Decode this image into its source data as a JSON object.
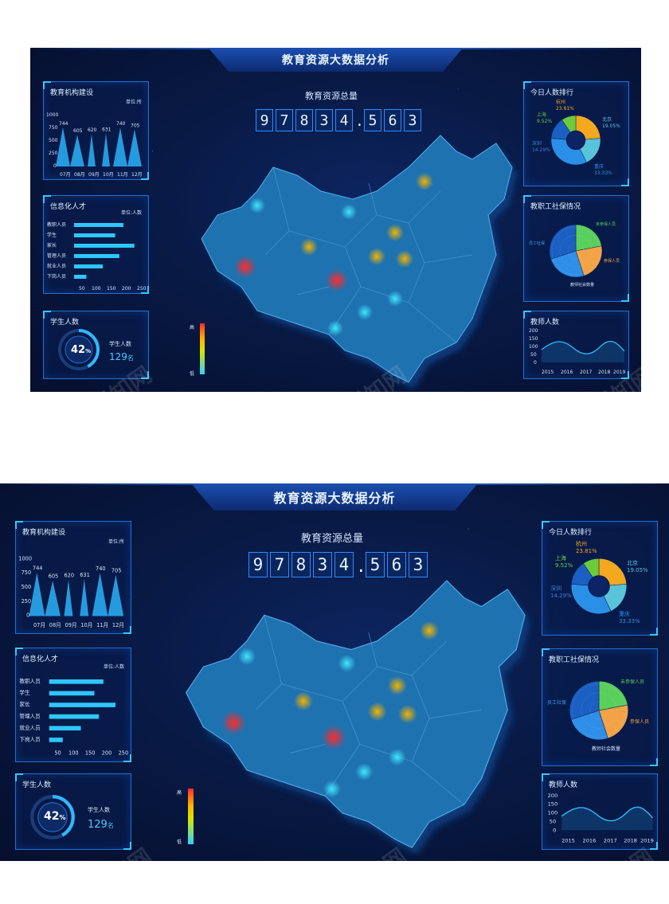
{
  "title": "教育资源大数据分析",
  "total": {
    "label": "教育资源总量",
    "digits": [
      "9",
      "7",
      "8",
      "3",
      "4",
      ".",
      "5",
      "6",
      "3"
    ]
  },
  "institutions": {
    "title": "教育机构建设",
    "unit": "单位:所",
    "y_ticks": [
      "1000",
      "750",
      "500",
      "250",
      "0"
    ],
    "x_ticks": [
      "07月",
      "08月",
      "09月",
      "10月",
      "11月",
      "12月"
    ],
    "peaks": [
      744,
      605,
      620,
      631,
      740,
      705
    ],
    "peak_labels": [
      "744",
      "605",
      "620",
      "631",
      "740",
      "705"
    ]
  },
  "talent": {
    "title": "信息化人才",
    "unit": "单位:人数",
    "rows": [
      {
        "label": "教职人员",
        "value": 180
      },
      {
        "label": "学生",
        "value": 150
      },
      {
        "label": "家长",
        "value": 220
      },
      {
        "label": "管理人员",
        "value": 165
      },
      {
        "label": "就业人员",
        "value": 105
      },
      {
        "label": "下岗人员",
        "value": 45
      }
    ],
    "x_ticks": [
      "50",
      "100",
      "150",
      "200",
      "250"
    ]
  },
  "students": {
    "title": "学生人数",
    "percent": "42",
    "percent_sign": "%",
    "caption": "学生人数",
    "count": "129",
    "count_unit": "名",
    "fraction": 0.42
  },
  "ranking": {
    "title": "今日人数排行",
    "items": [
      {
        "city": "杭州",
        "pct": "23.81%",
        "color": "#f3a81f"
      },
      {
        "city": "北京",
        "pct": "19.05%",
        "color": "#59c3d9"
      },
      {
        "city": "重庆",
        "pct": "33.33%",
        "color": "#2a8fe6"
      },
      {
        "city": "深圳",
        "pct": "14.29%",
        "color": "#1b5fc2"
      },
      {
        "city": "上海",
        "pct": "9.52%",
        "color": "#6bcb3b"
      }
    ]
  },
  "social": {
    "title": "教职工社保情况",
    "labels": [
      "未参保人员",
      "参保人员",
      "教师社会数量",
      "员工社保"
    ],
    "colors": [
      "#58d05b",
      "#f1a346",
      "#2e8ee8",
      "#1b5fc2"
    ]
  },
  "teachers": {
    "title": "教师人数",
    "y_ticks": [
      "200",
      "150",
      "100",
      "50",
      "0"
    ],
    "x_ticks": [
      "2015",
      "2016",
      "2017",
      "2018",
      "2019"
    ]
  },
  "legend": {
    "high": "高",
    "low": "低"
  },
  "watermark": "觅知网"
}
